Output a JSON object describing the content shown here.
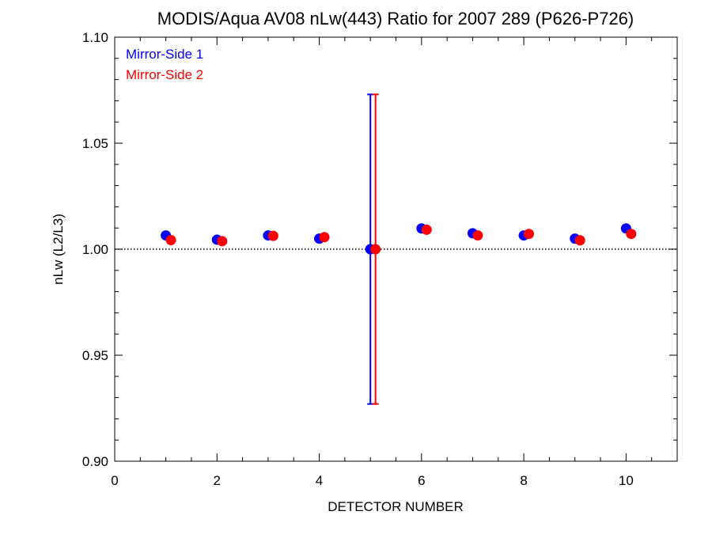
{
  "chart_data": {
    "type": "scatter",
    "title": "MODIS/Aqua AV08 nLw(443) Ratio for 2007 289 (P626-P726)",
    "xlabel": "DETECTOR NUMBER",
    "ylabel": "nLw (L2/L3)",
    "xlim": [
      0,
      11
    ],
    "ylim": [
      0.9,
      1.1
    ],
    "xticks": [
      0,
      2,
      4,
      6,
      8,
      10
    ],
    "xtick_labels": [
      "0",
      "2",
      "4",
      "6",
      "8",
      "10"
    ],
    "yticks": [
      0.9,
      0.95,
      1.0,
      1.05,
      1.1
    ],
    "ytick_labels": [
      "0.90",
      "0.95",
      "1.00",
      "1.05",
      "1.10"
    ],
    "reference_line": 1.0,
    "legend_position": "top-left",
    "grid": false,
    "series": [
      {
        "name": "Mirror-Side 1",
        "color": "#0000ff",
        "x": [
          1,
          2,
          3,
          4,
          5,
          6,
          7,
          8,
          9,
          10
        ],
        "y": [
          1.0065,
          1.0045,
          1.0065,
          1.005,
          1.0,
          1.0098,
          1.0075,
          1.0065,
          1.005,
          1.0098
        ],
        "error_bars": [
          {
            "x": 5,
            "low": 0.927,
            "high": 1.073
          }
        ]
      },
      {
        "name": "Mirror-Side 2",
        "color": "#ff0000",
        "x": [
          1.1,
          2.1,
          3.1,
          4.1,
          5.1,
          6.1,
          7.1,
          8.1,
          9.1,
          10.1
        ],
        "y": [
          1.0043,
          1.0038,
          1.0063,
          1.0057,
          1.0,
          1.0092,
          1.0065,
          1.0072,
          1.0042,
          1.0072
        ],
        "error_bars": [
          {
            "x": 5.1,
            "low": 0.927,
            "high": 1.073
          }
        ]
      }
    ]
  }
}
